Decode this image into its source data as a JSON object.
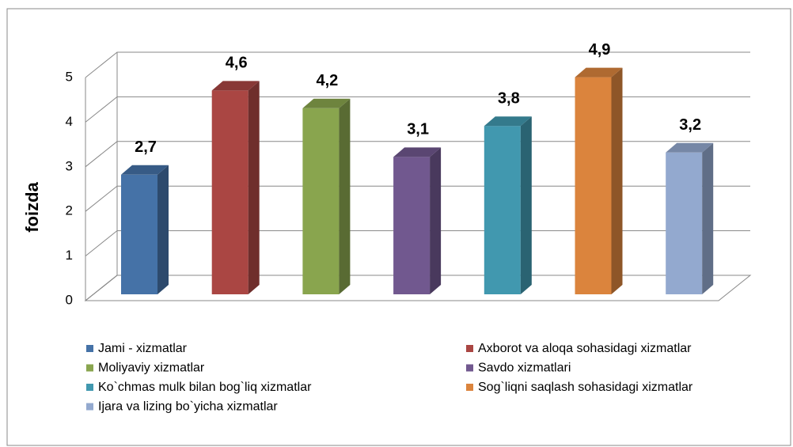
{
  "chart_data": {
    "type": "bar",
    "ylabel": "foizda",
    "series": [
      {
        "name": "Jami - xizmatlar",
        "color": "#4572a7",
        "values": [
          2.7
        ],
        "value_labels": [
          "2,7"
        ]
      },
      {
        "name": "Axborot va aloqa sohasidagi xizmatlar",
        "color": "#aa4643",
        "values": [
          4.6
        ],
        "value_labels": [
          "4,6"
        ]
      },
      {
        "name": "Moliyaviy xizmatlar",
        "color": "#89a54e",
        "values": [
          4.2
        ],
        "value_labels": [
          "4,2"
        ]
      },
      {
        "name": "Savdo xizmatlari",
        "color": "#71588f",
        "values": [
          3.1
        ],
        "value_labels": [
          "3,1"
        ]
      },
      {
        "name": "Ko`chmas mulk bilan bog`liq xizmatlar",
        "color": "#4198af",
        "values": [
          3.8
        ],
        "value_labels": [
          "3,8"
        ]
      },
      {
        "name": "Sog`liqni saqlash sohasidagi xizmatlar",
        "color": "#db843d",
        "values": [
          4.9
        ],
        "value_labels": [
          "4,9"
        ]
      },
      {
        "name": "Ijara va lizing bo`yicha xizmatlar",
        "color": "#93a9cf",
        "values": [
          3.2
        ],
        "value_labels": [
          "3,2"
        ]
      }
    ],
    "ylim": [
      0,
      5
    ],
    "yticks": [
      0,
      1,
      2,
      3,
      4,
      5
    ],
    "grid": true,
    "legend": "bottom"
  }
}
